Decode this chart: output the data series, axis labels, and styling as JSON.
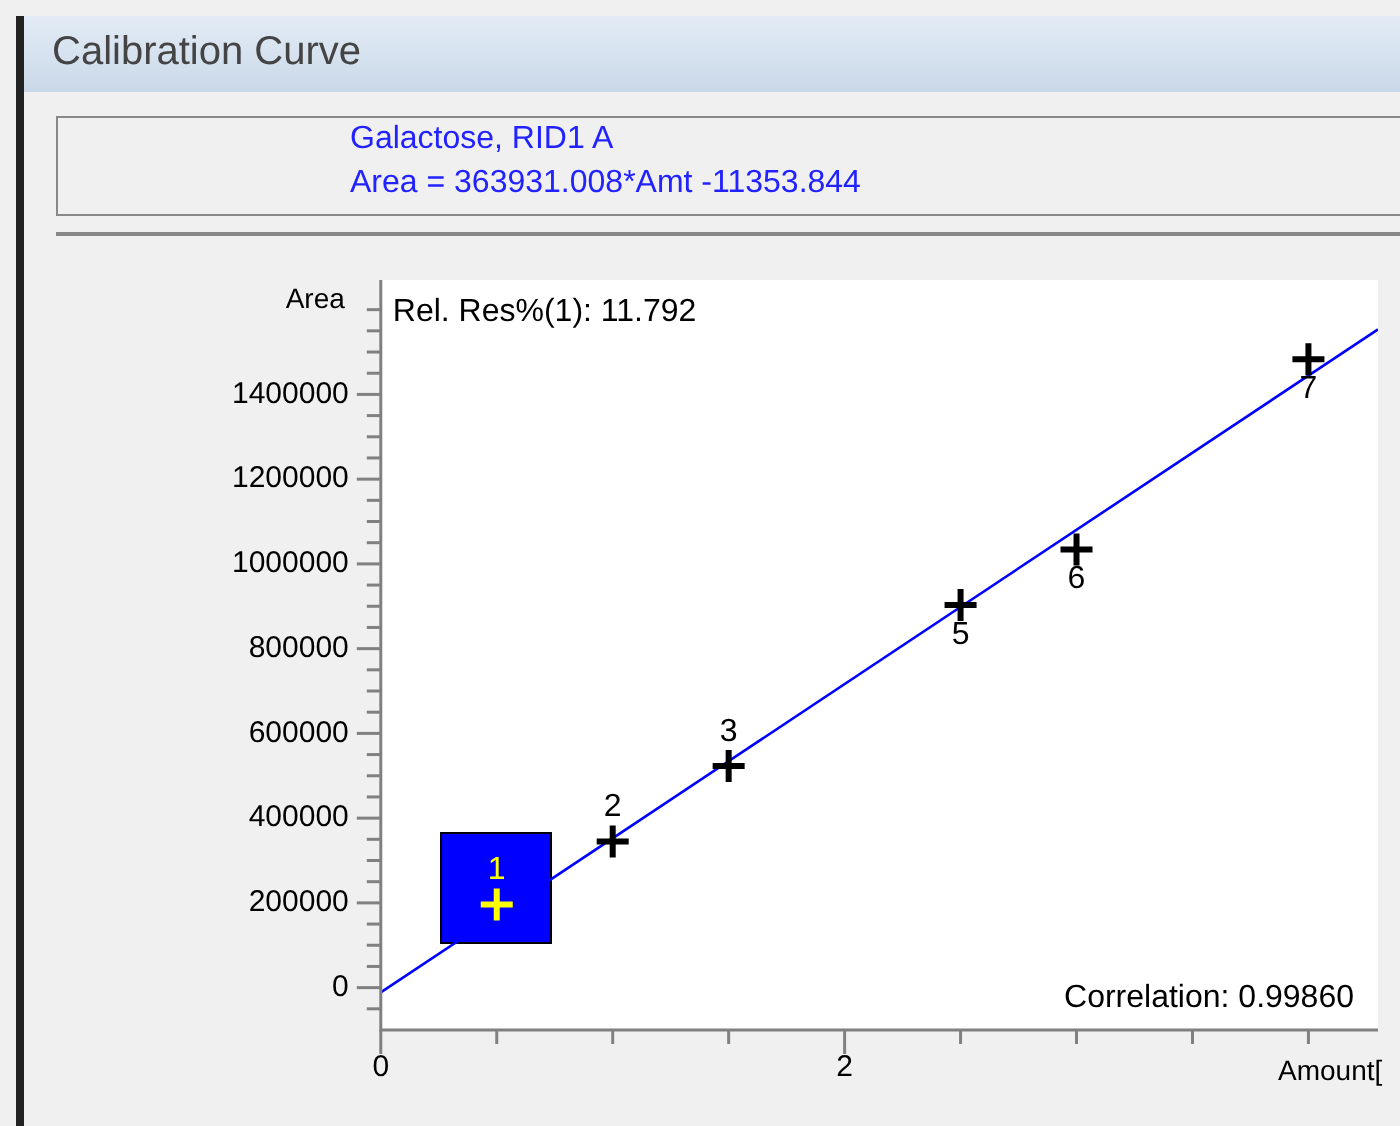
{
  "chart_data": {
    "type": "scatter",
    "title": "Calibration Curve",
    "subtitle": "Galactose, RID1 A\nArea = 363931.008*Amt -11353.844",
    "xlabel": "Amount[",
    "ylabel": "Area",
    "series": [
      {
        "type": "scatter",
        "marker": "cross",
        "x": [
          0.5,
          1.0,
          1.5,
          2.5,
          3.0,
          4.0
        ],
        "values": [
          196000,
          345000,
          523000,
          903000,
          1034000,
          1483000
        ],
        "colors": [
          "#ffff00",
          "#000000",
          "#000000",
          "#000000",
          "#000000",
          "#000000"
        ]
      },
      {
        "type": "line",
        "marker": "none",
        "line_style": "solid",
        "color": "#0000ff",
        "x": [
          0,
          4.3
        ],
        "values": [
          -11354,
          1553551
        ]
      }
    ],
    "xlim": [
      0,
      4.3
    ],
    "xticks": [
      0,
      {
        "value": 0.5,
        "label": null
      },
      {
        "value": 1,
        "label": null
      },
      {
        "value": 1.5,
        "label": null
      },
      2,
      {
        "value": 2.5,
        "label": null
      },
      {
        "value": 3,
        "label": null
      },
      {
        "value": 3.5,
        "label": null
      },
      {
        "value": 4,
        "label": null
      }
    ],
    "ylim": [
      -100000,
      1670000
    ],
    "yticks": [
      {
        "value": -50000,
        "label": null
      },
      0,
      {
        "value": 50000,
        "label": null
      },
      {
        "value": 100000,
        "label": null
      },
      {
        "value": 150000,
        "label": null
      },
      200000,
      {
        "value": 250000,
        "label": null
      },
      {
        "value": 300000,
        "label": null
      },
      {
        "value": 350000,
        "label": null
      },
      400000,
      {
        "value": 450000,
        "label": null
      },
      {
        "value": 500000,
        "label": null
      },
      {
        "value": 550000,
        "label": null
      },
      600000,
      {
        "value": 650000,
        "label": null
      },
      {
        "value": 700000,
        "label": null
      },
      {
        "value": 750000,
        "label": null
      },
      800000,
      {
        "value": 850000,
        "label": null
      },
      {
        "value": 900000,
        "label": null
      },
      {
        "value": 950000,
        "label": null
      },
      1000000,
      {
        "value": 1050000,
        "label": null
      },
      {
        "value": 1100000,
        "label": null
      },
      {
        "value": 1150000,
        "label": null
      },
      1200000,
      {
        "value": 1250000,
        "label": null
      },
      {
        "value": 1300000,
        "label": null
      },
      {
        "value": 1350000,
        "label": null
      },
      1400000,
      {
        "value": 1450000,
        "label": null
      },
      {
        "value": 1500000,
        "label": null
      },
      {
        "value": 1550000,
        "label": null
      },
      {
        "value": 1600000,
        "label": null
      }
    ],
    "grid": false,
    "legend": false,
    "annotations": [
      "Rel. Res%(1): 11.792",
      "Correlation: 0.99860",
      {
        "text": "1",
        "x": 0.5,
        "y": 196000
      },
      {
        "text": "2",
        "x": 1.0,
        "y": 345000
      },
      {
        "text": "3",
        "x": 1.5,
        "y": 523000
      },
      {
        "text": "5",
        "x": 2.5,
        "y": 903000
      },
      {
        "text": "6",
        "x": 3.0,
        "y": 1034000
      },
      {
        "text": "7",
        "x": 4.0,
        "y": 1483000
      }
    ]
  }
}
